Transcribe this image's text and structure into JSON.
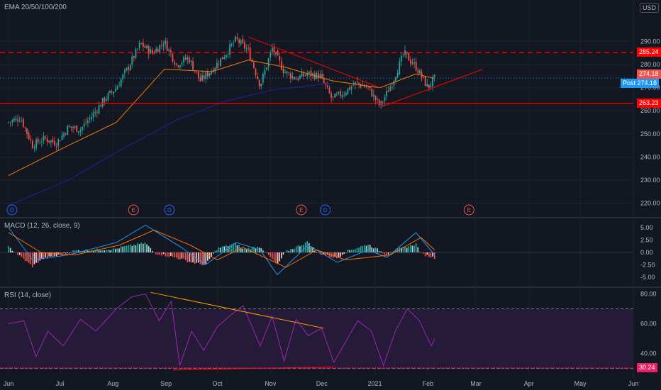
{
  "indicators": {
    "ema_label": "EMA 20/50/100/200",
    "macd_label": "MACD (12, 26, close, 9)",
    "rsi_label": "RSI (14, close)"
  },
  "currency": "USD",
  "badges": {
    "resistance": "285.24",
    "last_price": "274.18",
    "post_label": "Post",
    "post_price": "274.18",
    "support": "263.23",
    "rsi_level": "30.24"
  },
  "colors": {
    "background": "#131722",
    "up": "#26a69a",
    "down": "#ef5350",
    "ema_fast": "#f57c00",
    "ema_slow": "#1a237e",
    "rsi": "#9c27b0",
    "macd": "#2196f3",
    "signal": "#ff6d00",
    "level_red": "#ff0000",
    "rsi_band_fill": "#2a1b3d",
    "rsi_level_badge": "#e91e63"
  },
  "events": [
    {
      "text": "D",
      "color": "#2962ff",
      "date": "2020-06-03"
    },
    {
      "text": "E",
      "color": "#ef5350",
      "date": "2020-08-13"
    },
    {
      "text": "D",
      "color": "#2962ff",
      "date": "2020-09-03"
    },
    {
      "text": "E",
      "color": "#ef5350",
      "date": "2020-11-19"
    },
    {
      "text": "D",
      "color": "#2962ff",
      "date": "2020-12-03"
    },
    {
      "text": "E",
      "color": "#ef5350",
      "date": "2021-02-25"
    }
  ],
  "chart_data": {
    "type": "candlestick",
    "x_ticks": [
      "Jun",
      "Jul",
      "Aug",
      "Sep",
      "Oct",
      "Nov",
      "Dec",
      "2021",
      "Feb",
      "Mar",
      "Apr",
      "May",
      "Jun"
    ],
    "price_axis": {
      "ticks": [
        290.0,
        280.0,
        270.0,
        260.0,
        250.0,
        240.0,
        230.0,
        220.0
      ],
      "range": [
        214,
        300
      ]
    },
    "price_series": [
      {
        "date": "2020-06-01",
        "close": 255
      },
      {
        "date": "2020-06-08",
        "close": 257
      },
      {
        "date": "2020-06-15",
        "close": 245
      },
      {
        "date": "2020-06-22",
        "close": 248
      },
      {
        "date": "2020-06-29",
        "close": 246
      },
      {
        "date": "2020-07-06",
        "close": 253
      },
      {
        "date": "2020-07-13",
        "close": 252
      },
      {
        "date": "2020-07-20",
        "close": 258
      },
      {
        "date": "2020-07-27",
        "close": 265
      },
      {
        "date": "2020-08-03",
        "close": 270
      },
      {
        "date": "2020-08-10",
        "close": 279
      },
      {
        "date": "2020-08-17",
        "close": 289
      },
      {
        "date": "2020-08-24",
        "close": 285
      },
      {
        "date": "2020-08-31",
        "close": 290
      },
      {
        "date": "2020-09-07",
        "close": 280
      },
      {
        "date": "2020-09-14",
        "close": 283
      },
      {
        "date": "2020-09-21",
        "close": 273
      },
      {
        "date": "2020-09-28",
        "close": 278
      },
      {
        "date": "2020-10-05",
        "close": 284
      },
      {
        "date": "2020-10-12",
        "close": 291
      },
      {
        "date": "2020-10-19",
        "close": 286
      },
      {
        "date": "2020-10-26",
        "close": 271
      },
      {
        "date": "2020-11-02",
        "close": 287
      },
      {
        "date": "2020-11-09",
        "close": 277
      },
      {
        "date": "2020-11-16",
        "close": 274
      },
      {
        "date": "2020-11-23",
        "close": 276
      },
      {
        "date": "2020-11-30",
        "close": 275
      },
      {
        "date": "2020-12-07",
        "close": 265
      },
      {
        "date": "2020-12-14",
        "close": 268
      },
      {
        "date": "2020-12-21",
        "close": 272
      },
      {
        "date": "2020-12-28",
        "close": 270
      },
      {
        "date": "2021-01-04",
        "close": 262
      },
      {
        "date": "2021-01-11",
        "close": 272
      },
      {
        "date": "2021-01-18",
        "close": 285
      },
      {
        "date": "2021-01-25",
        "close": 279
      },
      {
        "date": "2021-02-01",
        "close": 270
      },
      {
        "date": "2021-02-05",
        "close": 274.18
      }
    ],
    "ema_fast": [
      {
        "date": "2020-06-01",
        "value": 232
      },
      {
        "date": "2020-07-06",
        "value": 245
      },
      {
        "date": "2020-08-03",
        "value": 255
      },
      {
        "date": "2020-08-31",
        "value": 278
      },
      {
        "date": "2020-09-28",
        "value": 277
      },
      {
        "date": "2020-10-19",
        "value": 282
      },
      {
        "date": "2020-11-09",
        "value": 279
      },
      {
        "date": "2020-12-07",
        "value": 273
      },
      {
        "date": "2021-01-04",
        "value": 270
      },
      {
        "date": "2021-01-25",
        "value": 276
      },
      {
        "date": "2021-02-05",
        "value": 274
      }
    ],
    "ema_slow": [
      {
        "date": "2020-06-01",
        "value": 219
      },
      {
        "date": "2020-07-06",
        "value": 230
      },
      {
        "date": "2020-08-03",
        "value": 242
      },
      {
        "date": "2020-09-07",
        "value": 256
      },
      {
        "date": "2020-10-05",
        "value": 264
      },
      {
        "date": "2020-11-02",
        "value": 269
      },
      {
        "date": "2020-12-07",
        "value": 272
      }
    ],
    "levels": [
      {
        "name": "resistance",
        "value": 285.24,
        "style": "dashed"
      },
      {
        "name": "support",
        "value": 263.23,
        "style": "solid"
      }
    ],
    "trendlines": [
      {
        "from": {
          "date": "2020-10-19",
          "value": 292
        },
        "to": {
          "date": "2021-01-04",
          "value": 270
        }
      },
      {
        "from": {
          "date": "2021-01-04",
          "value": 261.5
        },
        "to": {
          "date": "2021-03-05",
          "value": 278
        }
      }
    ],
    "macd": {
      "axis_ticks": [
        5.0,
        2.5,
        0.0,
        -2.5,
        -5.0
      ],
      "range": [
        -6,
        6
      ],
      "macd": [
        {
          "date": "2020-06-01",
          "value": 5
        },
        {
          "date": "2020-06-15",
          "value": -1.5
        },
        {
          "date": "2020-07-06",
          "value": -0.5
        },
        {
          "date": "2020-08-03",
          "value": 2
        },
        {
          "date": "2020-08-20",
          "value": 5.5
        },
        {
          "date": "2020-09-10",
          "value": 1
        },
        {
          "date": "2020-09-24",
          "value": -2.5
        },
        {
          "date": "2020-10-12",
          "value": 2
        },
        {
          "date": "2020-10-26",
          "value": 0.5
        },
        {
          "date": "2020-11-05",
          "value": -4.5
        },
        {
          "date": "2020-11-23",
          "value": 1.5
        },
        {
          "date": "2020-12-10",
          "value": -2
        },
        {
          "date": "2020-12-28",
          "value": 0.5
        },
        {
          "date": "2021-01-08",
          "value": -1
        },
        {
          "date": "2021-01-25",
          "value": 4
        },
        {
          "date": "2021-02-05",
          "value": -0.5
        }
      ],
      "signal": [
        {
          "date": "2020-06-01",
          "value": 4
        },
        {
          "date": "2020-06-20",
          "value": 0
        },
        {
          "date": "2020-07-10",
          "value": -0.5
        },
        {
          "date": "2020-08-05",
          "value": 1.5
        },
        {
          "date": "2020-08-25",
          "value": 4.5
        },
        {
          "date": "2020-09-15",
          "value": 1.5
        },
        {
          "date": "2020-10-01",
          "value": -1.5
        },
        {
          "date": "2020-10-16",
          "value": 1
        },
        {
          "date": "2020-11-10",
          "value": -3
        },
        {
          "date": "2020-11-28",
          "value": 0.5
        },
        {
          "date": "2020-12-15",
          "value": -1.5
        },
        {
          "date": "2021-01-10",
          "value": -0.5
        },
        {
          "date": "2021-01-28",
          "value": 3
        },
        {
          "date": "2021-02-05",
          "value": 0.5
        }
      ]
    },
    "rsi": {
      "axis_ticks": [
        80.0,
        60.0,
        40.0
      ],
      "range": [
        26,
        84
      ],
      "upper_band": 70,
      "lower_band": 30,
      "values": [
        {
          "date": "2020-06-01",
          "value": 60
        },
        {
          "date": "2020-06-10",
          "value": 62
        },
        {
          "date": "2020-06-17",
          "value": 38
        },
        {
          "date": "2020-06-24",
          "value": 55
        },
        {
          "date": "2020-07-03",
          "value": 45
        },
        {
          "date": "2020-07-13",
          "value": 63
        },
        {
          "date": "2020-07-22",
          "value": 55
        },
        {
          "date": "2020-08-03",
          "value": 70
        },
        {
          "date": "2020-08-12",
          "value": 78
        },
        {
          "date": "2020-08-20",
          "value": 80
        },
        {
          "date": "2020-08-28",
          "value": 62
        },
        {
          "date": "2020-09-04",
          "value": 75
        },
        {
          "date": "2020-09-09",
          "value": 32
        },
        {
          "date": "2020-09-16",
          "value": 55
        },
        {
          "date": "2020-09-23",
          "value": 42
        },
        {
          "date": "2020-10-01",
          "value": 58
        },
        {
          "date": "2020-10-09",
          "value": 66
        },
        {
          "date": "2020-10-16",
          "value": 72
        },
        {
          "date": "2020-10-26",
          "value": 45
        },
        {
          "date": "2020-11-02",
          "value": 65
        },
        {
          "date": "2020-11-09",
          "value": 35
        },
        {
          "date": "2020-11-16",
          "value": 63
        },
        {
          "date": "2020-11-23",
          "value": 52
        },
        {
          "date": "2020-12-01",
          "value": 57
        },
        {
          "date": "2020-12-08",
          "value": 34
        },
        {
          "date": "2020-12-15",
          "value": 48
        },
        {
          "date": "2020-12-22",
          "value": 62
        },
        {
          "date": "2020-12-30",
          "value": 55
        },
        {
          "date": "2021-01-06",
          "value": 32
        },
        {
          "date": "2021-01-13",
          "value": 55
        },
        {
          "date": "2021-01-20",
          "value": 70
        },
        {
          "date": "2021-01-27",
          "value": 62
        },
        {
          "date": "2021-02-03",
          "value": 45
        },
        {
          "date": "2021-02-05",
          "value": 50
        }
      ],
      "trendlines": [
        {
          "from": {
            "date": "2020-08-23",
            "value": 81
          },
          "to": {
            "date": "2020-12-02",
            "value": 57
          }
        },
        {
          "from": {
            "date": "2020-09-05",
            "value": 29
          },
          "to": {
            "date": "2020-12-08",
            "value": 31
          }
        }
      ]
    }
  }
}
